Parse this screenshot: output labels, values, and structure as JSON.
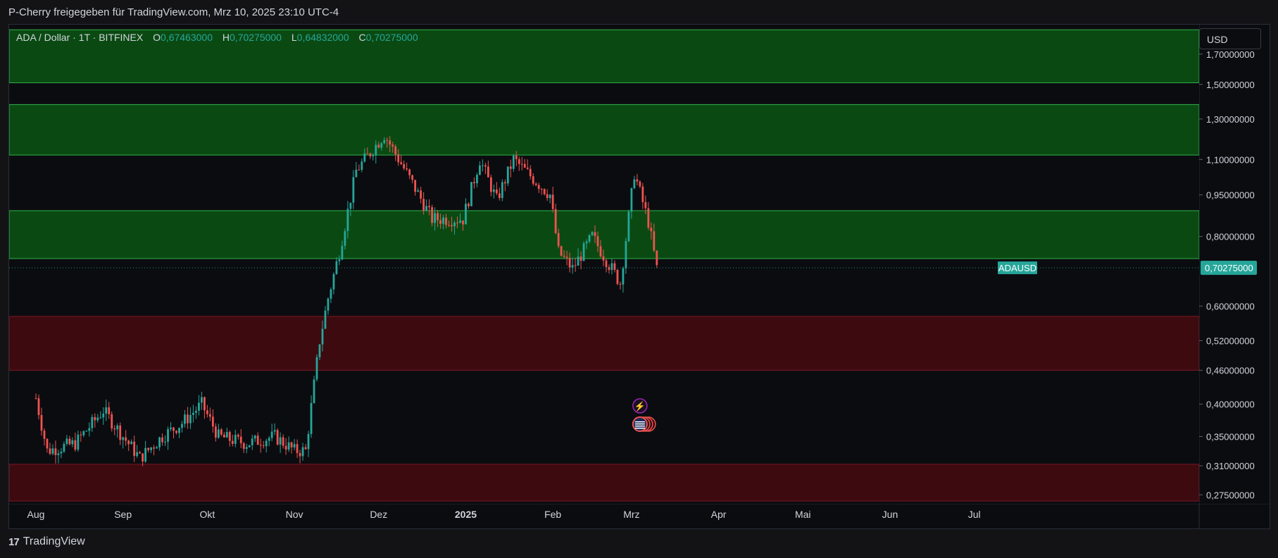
{
  "header": {
    "shared_by": "P-Cherry freigegeben für TradingView.com, Mrz 10, 2025 23:10 UTC-4"
  },
  "legend": {
    "symbol": "ADA / Dollar · 1T · BITFINEX",
    "o_label": "O",
    "o_value": "0,67463000",
    "h_label": "H",
    "h_value": "0,70275000",
    "l_label": "L",
    "l_value": "0,64832000",
    "c_label": "C",
    "c_value": "0,70275000"
  },
  "currency_button": "USD",
  "footer": {
    "brand": "TradingView",
    "logo_mark": "17"
  },
  "colors": {
    "up": "#26a69a",
    "down": "#ef5350",
    "resistance_zone": "#0a4a12",
    "resistance_border": "#2fb14a",
    "support_zone": "#3d0a10",
    "support_border": "#7a1a22",
    "price_tag": "#26a69a"
  },
  "chart_data": {
    "type": "candlestick",
    "scale": "log",
    "ylim": [
      0.265,
      1.92
    ],
    "x_tick_labels": [
      "Aug",
      "Sep",
      "Okt",
      "Nov",
      "Dez",
      "2025",
      "Feb",
      "Mrz",
      "Apr",
      "Mai",
      "Jun",
      "Jul"
    ],
    "y_tick_labels": [
      "1,70000000",
      "1,50000000",
      "1,30000000",
      "1,10000000",
      "0,95000000",
      "0,80000000",
      "0,60000000",
      "0,52000000",
      "0,46000000",
      "0,40000000",
      "0,35000000",
      "0,31000000",
      "0,27500000"
    ],
    "y_tick_values": [
      1.7,
      1.5,
      1.3,
      1.1,
      0.95,
      0.8,
      0.6,
      0.52,
      0.46,
      0.4,
      0.35,
      0.31,
      0.275
    ],
    "last_price": {
      "symbol": "ADAUSD",
      "value": 0.70275,
      "label": "0,70275000"
    },
    "zones": [
      {
        "kind": "resistance",
        "low": 1.51,
        "high": 1.88
      },
      {
        "kind": "resistance",
        "low": 1.12,
        "high": 1.38
      },
      {
        "kind": "resistance",
        "low": 0.73,
        "high": 0.89
      },
      {
        "kind": "support",
        "low": 0.46,
        "high": 0.575
      },
      {
        "kind": "support",
        "low": 0.268,
        "high": 0.312
      }
    ],
    "close_path": [
      [
        "2024-08-01",
        0.41
      ],
      [
        "2024-08-05",
        0.33
      ],
      [
        "2024-08-15",
        0.34
      ],
      [
        "2024-08-25",
        0.39
      ],
      [
        "2024-09-01",
        0.35
      ],
      [
        "2024-09-07",
        0.32
      ],
      [
        "2024-09-15",
        0.35
      ],
      [
        "2024-09-22",
        0.37
      ],
      [
        "2024-09-29",
        0.4
      ],
      [
        "2024-10-05",
        0.35
      ],
      [
        "2024-10-15",
        0.34
      ],
      [
        "2024-10-25",
        0.35
      ],
      [
        "2024-11-01",
        0.33
      ],
      [
        "2024-11-05",
        0.33
      ],
      [
        "2024-11-10",
        0.52
      ],
      [
        "2024-11-13",
        0.62
      ],
      [
        "2024-11-17",
        0.75
      ],
      [
        "2024-11-23",
        1.05
      ],
      [
        "2024-12-03",
        1.22
      ],
      [
        "2024-12-10",
        1.06
      ],
      [
        "2024-12-20",
        0.86
      ],
      [
        "2024-12-31",
        0.86
      ],
      [
        "2025-01-06",
        1.1
      ],
      [
        "2025-01-12",
        0.93
      ],
      [
        "2025-01-18",
        1.1
      ],
      [
        "2025-01-31",
        0.95
      ],
      [
        "2025-02-03",
        0.75
      ],
      [
        "2025-02-08",
        0.7
      ],
      [
        "2025-02-15",
        0.8
      ],
      [
        "2025-02-25",
        0.66
      ],
      [
        "2025-03-02",
        1.04
      ],
      [
        "2025-03-07",
        0.85
      ],
      [
        "2025-03-10",
        0.7
      ]
    ],
    "event_markers": [
      "lightning-icon",
      "us-flag-icon"
    ]
  }
}
